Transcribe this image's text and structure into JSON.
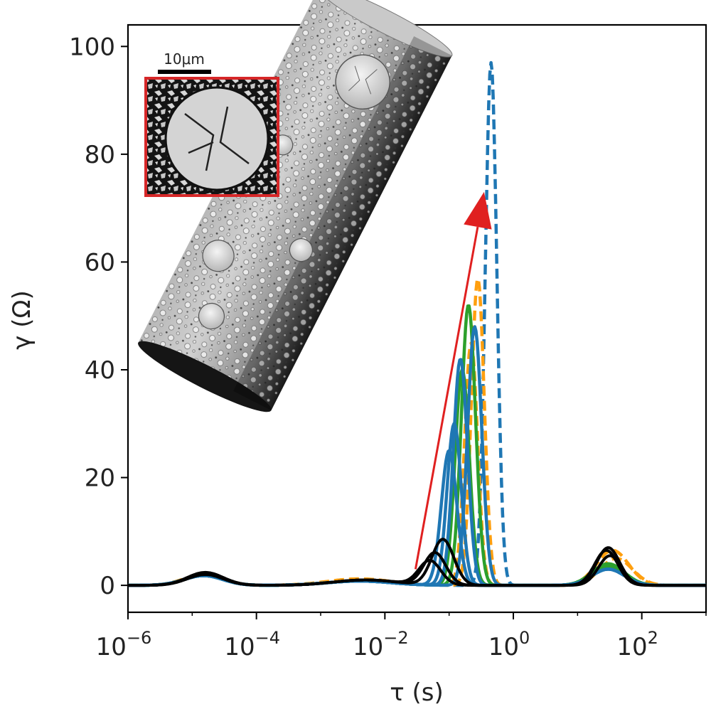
{
  "chart_data": {
    "type": "line",
    "title": "",
    "xlabel": "τ (s)",
    "ylabel": "γ (Ω)",
    "xscale": "log",
    "xlim": [
      1e-06,
      1000
    ],
    "ylim": [
      -5,
      104
    ],
    "x_ticks": [
      {
        "value": 1e-06,
        "base": "10",
        "exp": "−6"
      },
      {
        "value": 0.0001,
        "base": "10",
        "exp": "−4"
      },
      {
        "value": 0.01,
        "base": "10",
        "exp": "−2"
      },
      {
        "value": 1,
        "base": "10",
        "exp": "0"
      },
      {
        "value": 100,
        "base": "10",
        "exp": "2"
      }
    ],
    "y_ticks": [
      "0",
      "20",
      "40",
      "60",
      "80",
      "100"
    ],
    "grid": false,
    "series_colors": {
      "blue": "#1f77b4",
      "orange": "#ff9f0f",
      "green": "#2ca02c",
      "black": "#000000",
      "arrow": "#e02020"
    },
    "series": [
      {
        "color": "blue",
        "style": "dashed",
        "peaks": [
          [
            1.5e-05,
            2.0,
            0.3
          ],
          [
            0.004,
            0.8,
            0.5
          ],
          [
            0.45,
            97,
            0.09
          ],
          [
            30,
            3.5,
            0.25
          ]
        ]
      },
      {
        "color": "orange",
        "style": "dashed",
        "peaks": [
          [
            1.5e-05,
            2.0,
            0.3
          ],
          [
            0.004,
            1.2,
            0.5
          ],
          [
            0.28,
            57,
            0.1
          ],
          [
            35,
            6.5,
            0.25
          ]
        ]
      },
      {
        "color": "orange",
        "style": "dashed",
        "peaks": [
          [
            1.5e-05,
            2.0,
            0.3
          ],
          [
            0.004,
            1.0,
            0.5
          ],
          [
            0.22,
            45,
            0.1
          ],
          [
            40,
            5.0,
            0.25
          ]
        ]
      },
      {
        "color": "green",
        "style": "solid",
        "peaks": [
          [
            1.5e-05,
            1.8,
            0.3
          ],
          [
            0.004,
            0.8,
            0.5
          ],
          [
            0.2,
            52,
            0.11
          ],
          [
            30,
            4.0,
            0.25
          ]
        ]
      },
      {
        "color": "green",
        "style": "solid",
        "peaks": [
          [
            1.5e-05,
            1.8,
            0.3
          ],
          [
            0.004,
            0.8,
            0.5
          ],
          [
            0.16,
            40,
            0.11
          ],
          [
            30,
            3.5,
            0.25
          ]
        ]
      },
      {
        "color": "blue",
        "style": "solid",
        "peaks": [
          [
            1.5e-05,
            1.8,
            0.3
          ],
          [
            0.004,
            0.8,
            0.5
          ],
          [
            0.12,
            30,
            0.11
          ],
          [
            30,
            3.0,
            0.25
          ]
        ]
      },
      {
        "color": "blue",
        "style": "solid",
        "peaks": [
          [
            1.5e-05,
            1.8,
            0.3
          ],
          [
            0.004,
            0.8,
            0.5
          ],
          [
            0.15,
            42,
            0.11
          ],
          [
            30,
            3.0,
            0.25
          ]
        ]
      },
      {
        "color": "blue",
        "style": "solid",
        "peaks": [
          [
            1.5e-05,
            1.8,
            0.3
          ],
          [
            0.004,
            0.8,
            0.5
          ],
          [
            0.25,
            48,
            0.11
          ],
          [
            30,
            3.0,
            0.25
          ]
        ]
      },
      {
        "color": "blue",
        "style": "solid",
        "peaks": [
          [
            1.5e-05,
            1.8,
            0.3
          ],
          [
            0.004,
            0.8,
            0.5
          ],
          [
            0.1,
            25,
            0.12
          ],
          [
            30,
            3.0,
            0.25
          ]
        ]
      },
      {
        "color": "black",
        "style": "solid",
        "peaks": [
          [
            1.6e-05,
            2.4,
            0.28
          ],
          [
            0.005,
            1.0,
            0.5
          ],
          [
            0.08,
            8.5,
            0.17
          ],
          [
            30,
            7.0,
            0.18
          ]
        ]
      },
      {
        "color": "black",
        "style": "solid",
        "peaks": [
          [
            1.6e-05,
            2.2,
            0.28
          ],
          [
            0.005,
            1.0,
            0.5
          ],
          [
            0.06,
            6.0,
            0.17
          ],
          [
            28,
            6.5,
            0.18
          ]
        ]
      },
      {
        "color": "black",
        "style": "solid",
        "peaks": [
          [
            1.6e-05,
            2.0,
            0.28
          ],
          [
            0.005,
            1.0,
            0.5
          ],
          [
            0.05,
            4.5,
            0.17
          ],
          [
            32,
            5.5,
            0.18
          ]
        ]
      }
    ],
    "arrow": {
      "from": [
        0.03,
        3
      ],
      "to": [
        0.35,
        73
      ]
    },
    "inset": {
      "scale_label": "10μm"
    }
  }
}
